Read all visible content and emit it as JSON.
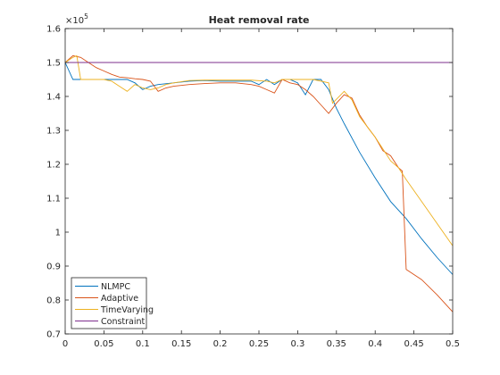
{
  "chart_data": {
    "type": "line",
    "title": "Heat removal rate",
    "xlabel": "",
    "ylabel": "",
    "xlim": [
      0,
      0.5
    ],
    "ylim": [
      0.7,
      1.6
    ],
    "y_exponent_label": "×10",
    "y_exponent_power": "5",
    "grid": false,
    "legend_position": "bottom-left",
    "x_ticks": [
      0,
      0.05,
      0.1,
      0.15,
      0.2,
      0.25,
      0.3,
      0.35,
      0.4,
      0.45,
      0.5
    ],
    "x_tick_labels": [
      "0",
      "0.05",
      "0.1",
      "0.15",
      "0.2",
      "0.25",
      "0.3",
      "0.35",
      "0.4",
      "0.45",
      "0.5"
    ],
    "y_ticks": [
      0.7,
      0.8,
      0.9,
      1.0,
      1.1,
      1.2,
      1.3,
      1.4,
      1.5,
      1.6
    ],
    "y_tick_labels": [
      "0.7",
      "0.8",
      "0.9",
      "1",
      "1.1",
      "1.2",
      "1.3",
      "1.4",
      "1.5",
      "1.6"
    ],
    "series": [
      {
        "name": "NLMPC",
        "color": "#0072bd",
        "points": [
          [
            0,
            1.5
          ],
          [
            0.01,
            1.45
          ],
          [
            0.02,
            1.45
          ],
          [
            0.04,
            1.45
          ],
          [
            0.06,
            1.45
          ],
          [
            0.08,
            1.45
          ],
          [
            0.09,
            1.44
          ],
          [
            0.1,
            1.42
          ],
          [
            0.11,
            1.43
          ],
          [
            0.12,
            1.435
          ],
          [
            0.14,
            1.44
          ],
          [
            0.16,
            1.445
          ],
          [
            0.18,
            1.447
          ],
          [
            0.2,
            1.445
          ],
          [
            0.22,
            1.445
          ],
          [
            0.24,
            1.445
          ],
          [
            0.25,
            1.435
          ],
          [
            0.26,
            1.45
          ],
          [
            0.27,
            1.435
          ],
          [
            0.28,
            1.45
          ],
          [
            0.29,
            1.45
          ],
          [
            0.3,
            1.44
          ],
          [
            0.31,
            1.405
          ],
          [
            0.32,
            1.45
          ],
          [
            0.33,
            1.45
          ],
          [
            0.34,
            1.42
          ],
          [
            0.35,
            1.365
          ],
          [
            0.36,
            1.32
          ],
          [
            0.38,
            1.235
          ],
          [
            0.4,
            1.16
          ],
          [
            0.42,
            1.09
          ],
          [
            0.44,
            1.04
          ],
          [
            0.46,
            0.98
          ],
          [
            0.48,
            0.925
          ],
          [
            0.5,
            0.875
          ]
        ]
      },
      {
        "name": "Adaptive",
        "color": "#d95319",
        "points": [
          [
            0,
            1.5
          ],
          [
            0.01,
            1.52
          ],
          [
            0.02,
            1.515
          ],
          [
            0.03,
            1.5
          ],
          [
            0.04,
            1.485
          ],
          [
            0.05,
            1.475
          ],
          [
            0.06,
            1.465
          ],
          [
            0.07,
            1.457
          ],
          [
            0.08,
            1.455
          ],
          [
            0.09,
            1.452
          ],
          [
            0.1,
            1.45
          ],
          [
            0.11,
            1.445
          ],
          [
            0.12,
            1.415
          ],
          [
            0.13,
            1.425
          ],
          [
            0.14,
            1.43
          ],
          [
            0.16,
            1.435
          ],
          [
            0.18,
            1.438
          ],
          [
            0.2,
            1.44
          ],
          [
            0.22,
            1.44
          ],
          [
            0.24,
            1.435
          ],
          [
            0.25,
            1.43
          ],
          [
            0.26,
            1.42
          ],
          [
            0.27,
            1.41
          ],
          [
            0.28,
            1.45
          ],
          [
            0.29,
            1.44
          ],
          [
            0.3,
            1.435
          ],
          [
            0.31,
            1.42
          ],
          [
            0.32,
            1.4
          ],
          [
            0.33,
            1.375
          ],
          [
            0.34,
            1.35
          ],
          [
            0.35,
            1.38
          ],
          [
            0.36,
            1.405
          ],
          [
            0.37,
            1.395
          ],
          [
            0.38,
            1.345
          ],
          [
            0.39,
            1.31
          ],
          [
            0.4,
            1.28
          ],
          [
            0.41,
            1.24
          ],
          [
            0.42,
            1.225
          ],
          [
            0.43,
            1.19
          ],
          [
            0.435,
            1.18
          ],
          [
            0.44,
            0.89
          ],
          [
            0.46,
            0.86
          ],
          [
            0.48,
            0.815
          ],
          [
            0.5,
            0.765
          ]
        ]
      },
      {
        "name": "TimeVarying",
        "color": "#edb120",
        "points": [
          [
            0,
            1.5
          ],
          [
            0.01,
            1.515
          ],
          [
            0.015,
            1.52
          ],
          [
            0.02,
            1.45
          ],
          [
            0.03,
            1.45
          ],
          [
            0.05,
            1.45
          ],
          [
            0.06,
            1.445
          ],
          [
            0.07,
            1.43
          ],
          [
            0.08,
            1.415
          ],
          [
            0.09,
            1.435
          ],
          [
            0.1,
            1.425
          ],
          [
            0.11,
            1.42
          ],
          [
            0.12,
            1.425
          ],
          [
            0.13,
            1.435
          ],
          [
            0.14,
            1.44
          ],
          [
            0.16,
            1.447
          ],
          [
            0.18,
            1.448
          ],
          [
            0.2,
            1.448
          ],
          [
            0.22,
            1.448
          ],
          [
            0.24,
            1.448
          ],
          [
            0.26,
            1.445
          ],
          [
            0.27,
            1.44
          ],
          [
            0.28,
            1.45
          ],
          [
            0.29,
            1.45
          ],
          [
            0.3,
            1.45
          ],
          [
            0.32,
            1.45
          ],
          [
            0.34,
            1.44
          ],
          [
            0.345,
            1.38
          ],
          [
            0.36,
            1.415
          ],
          [
            0.37,
            1.39
          ],
          [
            0.38,
            1.34
          ],
          [
            0.39,
            1.31
          ],
          [
            0.4,
            1.28
          ],
          [
            0.41,
            1.245
          ],
          [
            0.42,
            1.21
          ],
          [
            0.43,
            1.19
          ],
          [
            0.44,
            1.155
          ],
          [
            0.46,
            1.09
          ],
          [
            0.48,
            1.025
          ],
          [
            0.5,
            0.96
          ]
        ]
      },
      {
        "name": "Constraint",
        "color": "#7e2f8e",
        "points": [
          [
            0,
            1.5
          ],
          [
            0.5,
            1.5
          ]
        ]
      }
    ]
  }
}
